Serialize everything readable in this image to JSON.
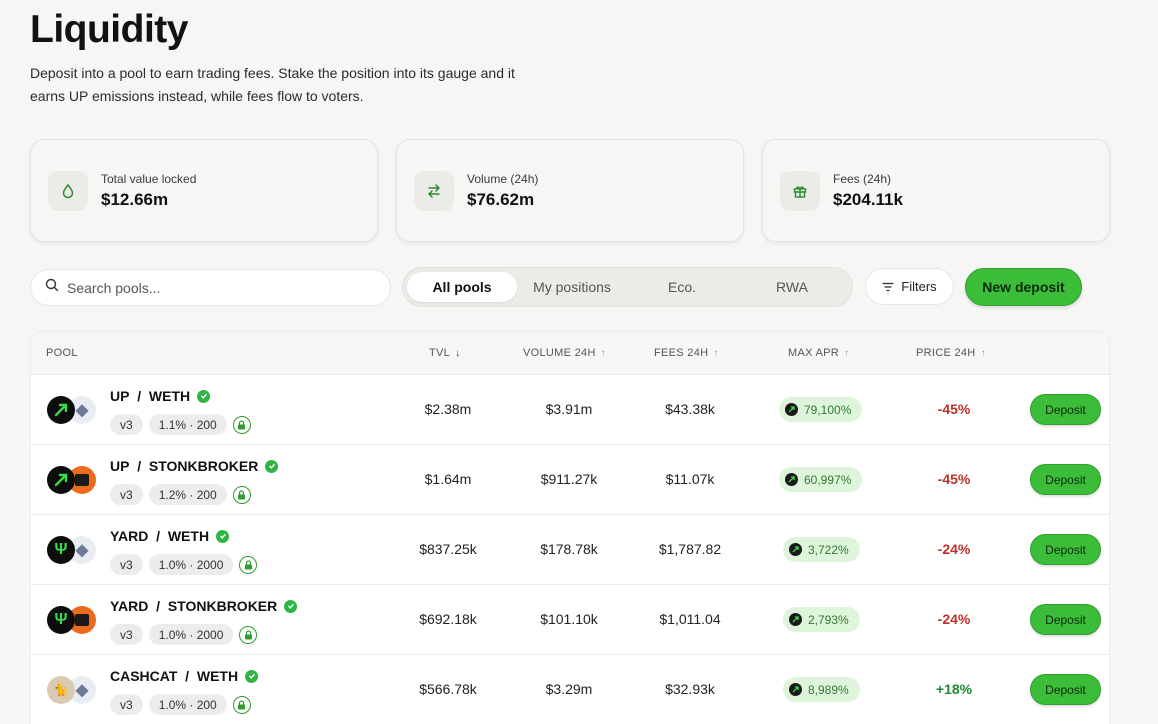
{
  "header": {
    "title": "Liquidity",
    "subtitle": "Deposit into a pool to earn trading fees. Stake the position into its gauge and it earns UP emissions instead, while fees flow to voters."
  },
  "stats": [
    {
      "label": "Total value locked",
      "value": "$12.66m",
      "icon": "droplet-icon"
    },
    {
      "label": "Volume (24h)",
      "value": "$76.62m",
      "icon": "swap-arrows-icon"
    },
    {
      "label": "Fees (24h)",
      "value": "$204.11k",
      "icon": "gift-icon"
    }
  ],
  "search": {
    "placeholder": "Search pools..."
  },
  "tabs": [
    {
      "label": "All pools",
      "active": true
    },
    {
      "label": "My positions",
      "active": false
    },
    {
      "label": "Eco.",
      "active": false
    },
    {
      "label": "RWA",
      "active": false
    }
  ],
  "toolbar": {
    "filters_label": "Filters",
    "new_deposit_label": "New deposit"
  },
  "table": {
    "columns": {
      "pool": "POOL",
      "tvl": "TVL",
      "volume": "VOLUME 24H",
      "fees": "FEES 24H",
      "apr": "MAX APR",
      "price": "PRICE 24H"
    },
    "sort_arrow_active": "↓",
    "sort_arrow_idle": "↑",
    "rows": [
      {
        "token_a": "UP",
        "token_b": "WETH",
        "version": "v3",
        "fee_tier": "1.1% · 200",
        "tvl": "$2.38m",
        "volume": "$3.91m",
        "fees": "$43.38k",
        "apr": "79,100%",
        "price": "-45%",
        "price_dir": "neg",
        "action": "Deposit"
      },
      {
        "token_a": "UP",
        "token_b": "STONKBROKER",
        "version": "v3",
        "fee_tier": "1.2% · 200",
        "tvl": "$1.64m",
        "volume": "$911.27k",
        "fees": "$11.07k",
        "apr": "60,997%",
        "price": "-45%",
        "price_dir": "neg",
        "action": "Deposit"
      },
      {
        "token_a": "YARD",
        "token_b": "WETH",
        "version": "v3",
        "fee_tier": "1.0% · 2000",
        "tvl": "$837.25k",
        "volume": "$178.78k",
        "fees": "$1,787.82",
        "apr": "3,722%",
        "price": "-24%",
        "price_dir": "neg",
        "action": "Deposit"
      },
      {
        "token_a": "YARD",
        "token_b": "STONKBROKER",
        "version": "v3",
        "fee_tier": "1.0% · 2000",
        "tvl": "$692.18k",
        "volume": "$101.10k",
        "fees": "$1,011.04",
        "apr": "2,793%",
        "price": "-24%",
        "price_dir": "neg",
        "action": "Deposit"
      },
      {
        "token_a": "CASHCAT",
        "token_b": "WETH",
        "version": "v3",
        "fee_tier": "1.0% · 200",
        "tvl": "$566.78k",
        "volume": "$3.29m",
        "fees": "$32.93k",
        "apr": "8,989%",
        "price": "+18%",
        "price_dir": "pos",
        "action": "Deposit"
      }
    ]
  },
  "colors": {
    "accent": "#3cbd3a",
    "negative": "#c0302a",
    "positive": "#1e8a2a"
  }
}
